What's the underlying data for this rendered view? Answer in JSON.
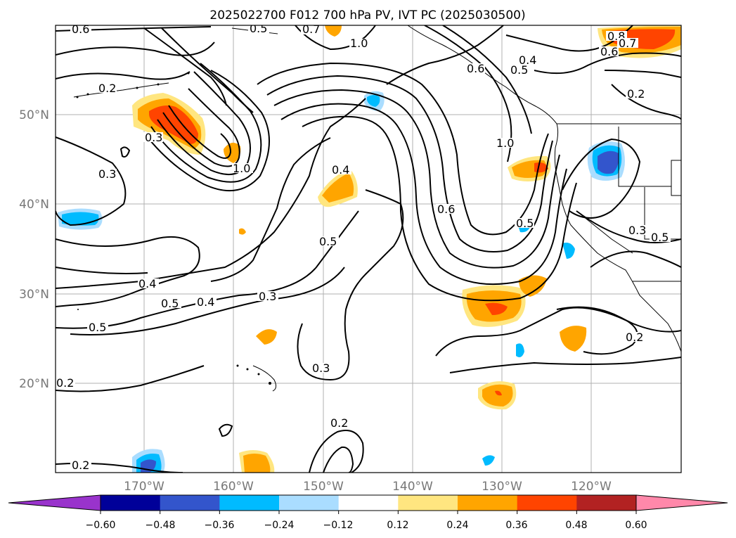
{
  "title": "2025022700 F012 700 hPa PV, IVT PC (2025030500)",
  "map": {
    "lat_labels": [
      "50°N",
      "40°N",
      "30°N",
      "20°N"
    ],
    "lon_labels": [
      "170°W",
      "160°W",
      "150°W",
      "140°W",
      "130°W",
      "120°W"
    ],
    "lat_range": [
      10,
      60
    ],
    "lon_range": [
      -180,
      -110
    ],
    "grid": true
  },
  "colorbar": {
    "ticks": [
      "−0.60",
      "−0.48",
      "−0.36",
      "−0.24",
      "−0.12",
      "0.12",
      "0.24",
      "0.36",
      "0.48",
      "0.60"
    ],
    "colors": [
      "#9933cc",
      "#000099",
      "#3355cc",
      "#00bbff",
      "#aaddff",
      "#ffffff",
      "#ffe680",
      "#ffa500",
      "#ff4400",
      "#b22222",
      "#ff88aa"
    ],
    "extend": "both"
  },
  "contour_labels": [
    "0.6",
    "0.5",
    "0.7",
    "1.0",
    "0.2",
    "0.3",
    "1.0",
    "0.3",
    "0.4",
    "0.6",
    "0.5",
    "0.4",
    "0.5",
    "0.4",
    "0.5",
    "0.3",
    "0.5",
    "0.6",
    "0.8",
    "0.7",
    "0.6",
    "0.2",
    "0.4",
    "0.5",
    "1.0",
    "0.3",
    "0.5",
    "0.2",
    "0.3",
    "0.2",
    "0.2",
    "0.2"
  ]
}
